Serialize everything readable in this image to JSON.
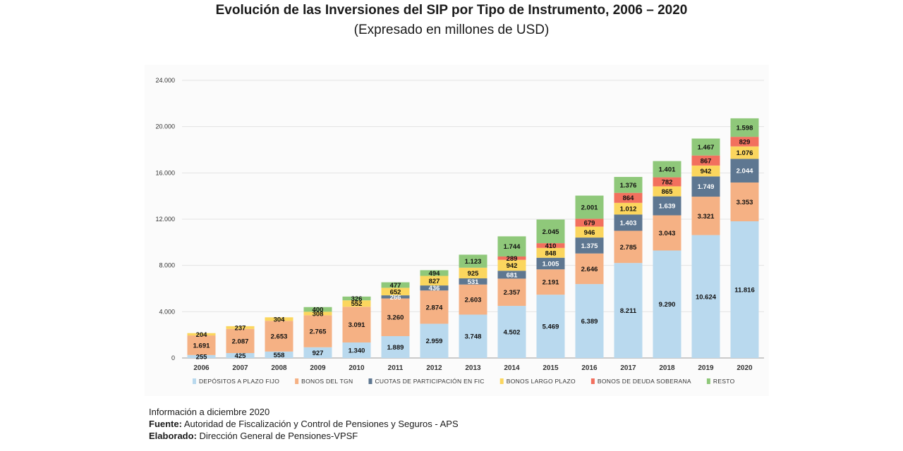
{
  "title": "Evolución de las Inversiones del SIP por Tipo de Instrumento, 2006 – 2020",
  "subtitle": "(Expresado en millones de USD)",
  "footer": {
    "info": "Información a diciembre 2020",
    "source_label": "Fuente:",
    "source_text": "Autoridad de Fiscalización y Control de Pensiones y Seguros - APS",
    "made_label": "Elaborado:",
    "made_text": "Dirección General de Pensiones-VPSF"
  },
  "chart_data": {
    "type": "bar",
    "stacked": true,
    "categories": [
      "2006",
      "2007",
      "2008",
      "2009",
      "2010",
      "2011",
      "2012",
      "2013",
      "2014",
      "2015",
      "2016",
      "2017",
      "2018",
      "2019",
      "2020"
    ],
    "ylim": [
      0,
      24000
    ],
    "yticks": [
      0,
      4000,
      8000,
      12000,
      16000,
      20000,
      24000
    ],
    "ytick_labels": [
      "0",
      "4.000",
      "8.000",
      "12.000",
      "16.000",
      "20.000",
      "24.000"
    ],
    "grid": true,
    "legend_position": "bottom",
    "series": [
      {
        "name": "DEPÓSITOS A PLAZO FIJO",
        "color": "#b9d9ee",
        "label_color": "#111111",
        "values": [
          255,
          425,
          558,
          927,
          1340,
          1889,
          2959,
          3748,
          4502,
          5469,
          6389,
          8211,
          9290,
          10624,
          11816
        ],
        "labels": [
          "255",
          "425",
          "558",
          "927",
          "1.340",
          "1.889",
          "2.959",
          "3.748",
          "4.502",
          "5.469",
          "6.389",
          "8.211",
          "9.290",
          "10.624",
          "11.816"
        ]
      },
      {
        "name": "BONOS DEL TGN",
        "color": "#f5b184",
        "label_color": "#111111",
        "values": [
          1691,
          2087,
          2653,
          2765,
          3091,
          3260,
          2874,
          2603,
          2357,
          2191,
          2646,
          2785,
          3043,
          3321,
          3353
        ],
        "labels": [
          "1.691",
          "2.087",
          "2.653",
          "2.765",
          "3.091",
          "3.260",
          "2.874",
          "2.603",
          "2.357",
          "2.191",
          "2.646",
          "2.785",
          "3.043",
          "3.321",
          "3.353"
        ]
      },
      {
        "name": "CUOTAS DE PARTICIPACIÓN EN FIC",
        "color": "#5e7791",
        "label_color": "#ffffff",
        "values": [
          0,
          0,
          0,
          0,
          0,
          266,
          436,
          531,
          681,
          1005,
          1375,
          1403,
          1639,
          1749,
          2044
        ],
        "labels": [
          "",
          "",
          "",
          "",
          "",
          "266",
          "436",
          "531",
          "681",
          "1.005",
          "1.375",
          "1.403",
          "1.639",
          "1.749",
          "2.044"
        ]
      },
      {
        "name": "BONOS LARGO PLAZO",
        "color": "#fbd65e",
        "label_color": "#111111",
        "values": [
          204,
          237,
          304,
          308,
          552,
          652,
          827,
          925,
          942,
          848,
          946,
          1012,
          865,
          942,
          1076
        ],
        "labels": [
          "204",
          "237",
          "304",
          "308",
          "552",
          "652",
          "827",
          "925",
          "942",
          "848",
          "946",
          "1.012",
          "865",
          "942",
          "1.076"
        ]
      },
      {
        "name": "BONOS DE DEUDA SOBERANA",
        "color": "#f2705e",
        "label_color": "#111111",
        "values": [
          0,
          0,
          0,
          0,
          0,
          0,
          0,
          0,
          289,
          410,
          679,
          864,
          782,
          867,
          829
        ],
        "labels": [
          "",
          "",
          "",
          "",
          "",
          "",
          "",
          "",
          "289",
          "410",
          "679",
          "864",
          "782",
          "867",
          "829"
        ]
      },
      {
        "name": "RESTO",
        "color": "#8fc87a",
        "label_color": "#111111",
        "values": [
          0,
          0,
          0,
          400,
          326,
          477,
          494,
          1123,
          1744,
          2045,
          2001,
          1376,
          1401,
          1467,
          1598
        ],
        "labels": [
          "",
          "",
          "",
          "400",
          "326",
          "477",
          "494",
          "1.123",
          "1.744",
          "2.045",
          "2.001",
          "1.376",
          "1.401",
          "1.467",
          "1.598"
        ]
      }
    ]
  }
}
